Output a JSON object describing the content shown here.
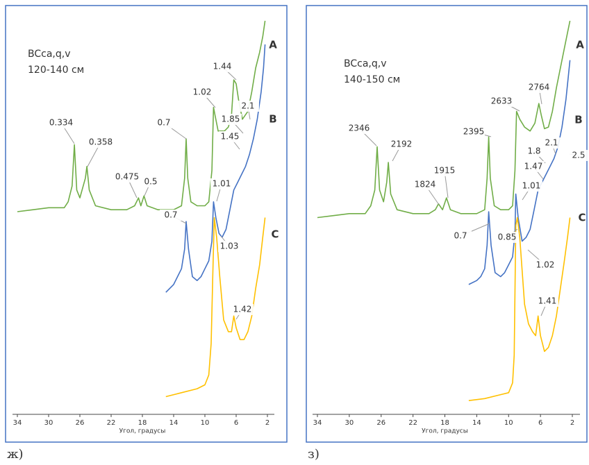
{
  "chart_data": [
    {
      "type": "line",
      "title": "BCca,q,v",
      "subtitle": "120-140 см",
      "xlabel": "Угол, градусы",
      "caption": "ж)",
      "xlim": [
        34,
        2
      ],
      "xticks": [
        34,
        30,
        26,
        22,
        18,
        14,
        10,
        6,
        2
      ],
      "ylim": [
        0,
        100
      ],
      "series": [
        {
          "name": "A",
          "color": "#70ad47",
          "x": [
            34,
            32,
            30,
            28,
            27.5,
            27,
            26.7,
            26.4,
            26,
            25.3,
            25.1,
            24.8,
            24,
            22,
            20,
            19,
            18.5,
            18.2,
            17.8,
            17.4,
            16,
            14,
            13,
            12.6,
            12.4,
            12.2,
            11.8,
            11,
            10,
            9.5,
            9.1,
            8.9,
            8.7,
            8.3,
            7.5,
            7,
            6.6,
            6.3,
            6,
            5.7,
            5.2,
            4.5,
            4,
            3.5,
            3,
            2.6,
            2.3
          ],
          "values": [
            51.5,
            52,
            52.5,
            52.5,
            54,
            58,
            68.5,
            57,
            55,
            60,
            63,
            57,
            53,
            52,
            52,
            53,
            55,
            53,
            55.5,
            53,
            52,
            52,
            53,
            60,
            70,
            60,
            54,
            53,
            53,
            54,
            62,
            78,
            76,
            72,
            72,
            73,
            76,
            85,
            84,
            80,
            75,
            77,
            82,
            88,
            92,
            96,
            100
          ]
        },
        {
          "name": "B",
          "color": "#4472c4",
          "x": [
            15,
            14,
            13.5,
            13,
            12.6,
            12.4,
            12.1,
            11.6,
            11,
            10.5,
            10,
            9.5,
            9.1,
            8.9,
            8.6,
            8.2,
            7.8,
            7.3,
            6.8,
            6.3,
            5.8,
            5.3,
            4.8,
            4.3,
            3.8,
            3.3,
            2.8,
            2.5,
            2.3
          ],
          "values": [
            31,
            33,
            35,
            37,
            42,
            49,
            42,
            35,
            34,
            35,
            37,
            39,
            44,
            54,
            50,
            46,
            45,
            47,
            52,
            57,
            59,
            61,
            63,
            66,
            70,
            75,
            82,
            88,
            94
          ]
        },
        {
          "name": "C",
          "color": "#ffc000",
          "x": [
            15,
            13,
            11,
            10,
            9.5,
            9.2,
            9,
            8.8,
            8.5,
            8.1,
            7.6,
            7,
            6.6,
            6.3,
            6,
            5.5,
            5,
            4.5,
            4,
            3.5,
            3,
            2.6,
            2.3
          ],
          "values": [
            4.5,
            5.5,
            6.5,
            7.5,
            10,
            18,
            35,
            50,
            45,
            35,
            24,
            21,
            21,
            25,
            22,
            19,
            19,
            21,
            25,
            32,
            38,
            45,
            50
          ]
        }
      ],
      "annotations": [
        "0.334",
        "0.358",
        "0.475",
        "0.5",
        "0.7",
        "1.02",
        "1.44",
        "1.85",
        "2.1",
        "1.45",
        "1.01",
        "0.7",
        "1.03",
        "1.42"
      ]
    },
    {
      "type": "line",
      "title": "BCca,q,v",
      "subtitle": "140-150 см",
      "xlabel": "Угол, градусы",
      "caption": "з)",
      "xlim": [
        34,
        2
      ],
      "xticks": [
        34,
        30,
        26,
        22,
        18,
        14,
        10,
        6,
        2
      ],
      "ylim": [
        0,
        100
      ],
      "series": [
        {
          "name": "A",
          "color": "#70ad47",
          "x": [
            34,
            32,
            30,
            28,
            27.3,
            26.8,
            26.5,
            26.2,
            25.7,
            25.3,
            25.1,
            24.8,
            24,
            22,
            20,
            19.2,
            18.8,
            18.3,
            17.8,
            17.3,
            16,
            14,
            13,
            12.7,
            12.5,
            12.3,
            11.8,
            11,
            10,
            9.5,
            9.2,
            9,
            8.6,
            8,
            7.3,
            6.7,
            6.4,
            6.2,
            5.9,
            5.5,
            5,
            4.5,
            4,
            3.5,
            3,
            2.6,
            2.3
          ],
          "values": [
            50,
            50.5,
            51,
            51,
            53,
            57,
            68,
            57,
            54,
            59,
            64,
            56,
            52,
            51,
            51,
            52,
            53.5,
            52,
            55,
            52,
            51,
            51,
            52,
            60,
            70.5,
            60,
            53,
            52,
            52,
            53,
            62,
            77,
            75,
            73,
            72,
            74,
            77,
            79,
            76,
            72.6,
            73,
            77,
            83,
            88,
            93,
            97,
            100
          ]
        },
        {
          "name": "B",
          "color": "#4472c4",
          "x": [
            15,
            14,
            13.5,
            13,
            12.7,
            12.5,
            12.2,
            11.7,
            11,
            10.5,
            10,
            9.5,
            9.2,
            9.1,
            8.8,
            8.3,
            7.8,
            7.3,
            6.8,
            6.3,
            5.8,
            5.3,
            4.8,
            4.3,
            3.8,
            3.3,
            2.8,
            2.5,
            2.3
          ],
          "values": [
            33,
            34,
            35,
            37,
            43,
            51.5,
            43,
            36,
            35,
            36,
            38,
            40,
            46,
            56,
            50,
            44,
            45,
            47,
            52,
            57,
            59,
            61,
            63,
            65,
            68,
            73,
            80,
            86,
            90
          ]
        },
        {
          "name": "C",
          "color": "#ffc000",
          "x": [
            15,
            13,
            11,
            10,
            9.5,
            9.3,
            9.1,
            8.9,
            8.6,
            8,
            7.5,
            7,
            6.6,
            6.3,
            6,
            5.5,
            5,
            4.5,
            4,
            3.5,
            3,
            2.6,
            2.3
          ],
          "values": [
            3.5,
            4,
            5,
            5.5,
            8,
            15,
            48,
            50,
            45,
            28,
            23,
            21,
            20,
            25,
            20,
            16,
            17,
            20,
            25,
            32,
            39,
            45,
            50
          ]
        }
      ],
      "annotations": [
        "2346",
        "2192",
        "1824",
        "1915",
        "2395",
        "2633",
        "2764",
        "1.8",
        "2.1",
        "1.47",
        "2.5",
        "1.01",
        "0.7",
        "0.85",
        "1.02",
        "1.41"
      ]
    }
  ]
}
